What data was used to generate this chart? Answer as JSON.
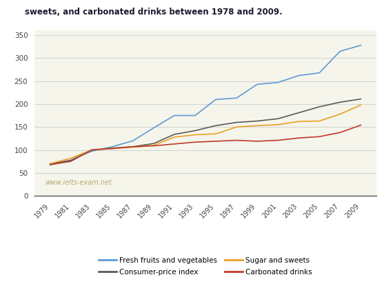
{
  "title": "sweets, and carbonated drinks between 1978 and 2009.",
  "watermark": "www.ielts-exam.net",
  "years": [
    1979,
    1981,
    1983,
    1985,
    1987,
    1989,
    1991,
    1993,
    1995,
    1997,
    1999,
    2001,
    2003,
    2005,
    2007,
    2009
  ],
  "fresh_fruits": [
    67,
    78,
    97,
    107,
    120,
    148,
    175,
    175,
    210,
    213,
    243,
    247,
    262,
    268,
    315,
    328
  ],
  "consumer_price": [
    70,
    77,
    100,
    104,
    107,
    114,
    134,
    142,
    153,
    160,
    163,
    168,
    181,
    194,
    204,
    211
  ],
  "sugar_sweets": [
    70,
    82,
    100,
    103,
    106,
    110,
    128,
    133,
    135,
    150,
    153,
    155,
    162,
    163,
    178,
    198
  ],
  "carbonated": [
    68,
    75,
    100,
    103,
    107,
    109,
    113,
    117,
    119,
    121,
    119,
    121,
    126,
    129,
    138,
    154
  ],
  "colors": {
    "fresh_fruits": "#5b9bd5",
    "consumer_price": "#595959",
    "sugar_sweets": "#e8a020",
    "carbonated": "#c0392b"
  },
  "plot_bg": "#f5f5eb",
  "fig_bg": "#ffffff",
  "ylim": [
    0,
    360
  ],
  "yticks": [
    0,
    50,
    100,
    150,
    200,
    250,
    300,
    350
  ],
  "legend_order": [
    [
      "Fresh fruits and vegetables",
      "fresh_fruits"
    ],
    [
      "Consumer-price index",
      "consumer_price"
    ],
    [
      "Sugar and sweets",
      "sugar_sweets"
    ],
    [
      "Carbonated drinks",
      "carbonated"
    ]
  ]
}
